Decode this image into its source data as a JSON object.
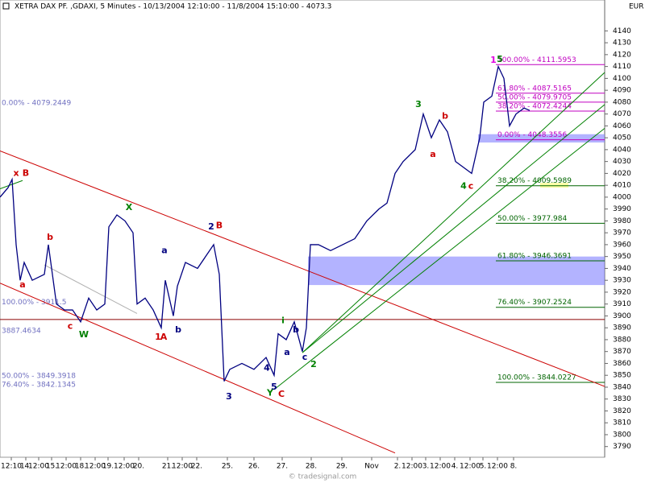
{
  "chart_data": {
    "type": "line",
    "title": "XETRA DAX PF. ,GDAXI, 5 Minutes - 10/13/2004 12:10:00 - 11/8/2004 15:10:00 - 4073.3",
    "currency": "EUR",
    "footer": "© tradesignal.com",
    "color": "#000080",
    "x": [
      0,
      10,
      15,
      20,
      25,
      30,
      40,
      55,
      60,
      70,
      80,
      90,
      100,
      110,
      120,
      130,
      135,
      145,
      155,
      165,
      170,
      180,
      190,
      200,
      205,
      215,
      220,
      230,
      245,
      255,
      265,
      272,
      278,
      285,
      300,
      315,
      330,
      340,
      345,
      355,
      365,
      375,
      380,
      385,
      395,
      410,
      425,
      440,
      455,
      470,
      480,
      490,
      500,
      515,
      525,
      535,
      545,
      555,
      565,
      575,
      585,
      595,
      600,
      610,
      618,
      625,
      632,
      640,
      650,
      657
    ],
    "values": [
      4000,
      4008,
      4015,
      3960,
      3930,
      3945,
      3930,
      3935,
      3960,
      3910,
      3905,
      3905,
      3895,
      3915,
      3905,
      3910,
      3975,
      3985,
      3980,
      3970,
      3910,
      3915,
      3905,
      3890,
      3930,
      3900,
      3925,
      3945,
      3940,
      3950,
      3960,
      3935,
      3845,
      3855,
      3860,
      3855,
      3865,
      3850,
      3885,
      3880,
      3895,
      3870,
      3890,
      3960,
      3960,
      3955,
      3960,
      3965,
      3980,
      3990,
      3995,
      4020,
      4030,
      4040,
      4070,
      4050,
      4065,
      4055,
      4030,
      4025,
      4020,
      4050,
      4080,
      4085,
      4110,
      4100,
      4060,
      4070,
      4075,
      4073
    ],
    "xlim": [
      0,
      750
    ],
    "ylim": [
      3781,
      4166
    ],
    "yticks": [
      3790,
      3800,
      3810,
      3820,
      3830,
      3840,
      3850,
      3860,
      3870,
      3880,
      3890,
      3900,
      3910,
      3920,
      3930,
      3940,
      3950,
      3960,
      3970,
      3980,
      3990,
      4000,
      4010,
      4020,
      4030,
      4040,
      4050,
      4060,
      4070,
      4080,
      4090,
      4100,
      4110,
      4120,
      4130,
      4140
    ],
    "xticks": [
      {
        "value": 14,
        "label": "12:10"
      },
      {
        "value": 32,
        "label": "14."
      },
      {
        "value": 48,
        "label": "12:00"
      },
      {
        "value": 64,
        "label": "15."
      },
      {
        "value": 82,
        "label": "12:00"
      },
      {
        "value": 100,
        "label": "18."
      },
      {
        "value": 118,
        "label": "12:00"
      },
      {
        "value": 134,
        "label": "19."
      },
      {
        "value": 154,
        "label": "12:00"
      },
      {
        "value": 172,
        "label": "20."
      },
      {
        "value": 208,
        "label": "21."
      },
      {
        "value": 226,
        "label": "12:00"
      },
      {
        "value": 244,
        "label": "22."
      },
      {
        "value": 282,
        "label": "25."
      },
      {
        "value": 315,
        "label": "26."
      },
      {
        "value": 350,
        "label": "27."
      },
      {
        "value": 386,
        "label": "28."
      },
      {
        "value": 424,
        "label": "29."
      },
      {
        "value": 461,
        "label": "Nov"
      },
      {
        "value": 493,
        "label": "2."
      },
      {
        "value": 511,
        "label": "12:00"
      },
      {
        "value": 528,
        "label": "3."
      },
      {
        "value": 546,
        "label": "12:00"
      },
      {
        "value": 564,
        "label": "4."
      },
      {
        "value": 583,
        "label": "12:00"
      },
      {
        "value": 599,
        "label": "5."
      },
      {
        "value": 617,
        "label": "12:00"
      },
      {
        "value": 637,
        "label": "8."
      }
    ],
    "hline": {
      "value": 3897,
      "color": "#8b0000"
    },
    "zones": [
      {
        "from": 382,
        "to": 750,
        "low": 3926,
        "high": 3950,
        "color": "#8080ff"
      },
      {
        "from": 593,
        "to": 750,
        "low": 4046,
        "high": 4053,
        "color": "#8080ff"
      },
      {
        "from": 670,
        "to": 705,
        "low": 4008,
        "high": 4012,
        "color": "#ffff66"
      }
    ],
    "trendlines": [
      {
        "x": [
          0,
          750
        ],
        "y": [
          4038.9,
          3840.6
        ],
        "color": "#cc0000"
      },
      {
        "x": [
          0,
          490
        ],
        "y": [
          3927.6,
          3784.6
        ],
        "color": "#cc0000"
      },
      {
        "x": [
          375,
          750
        ],
        "y": [
          3869,
          4105
        ],
        "color": "#008000"
      },
      {
        "x": [
          375,
          750
        ],
        "y": [
          3869,
          4078
        ],
        "color": "#008000"
      },
      {
        "x": [
          340,
          750
        ],
        "y": [
          3838,
          4058
        ],
        "color": "#008000"
      },
      {
        "x": [
          0,
          28
        ],
        "y": [
          4007,
          4014
        ],
        "color": "#008000"
      },
      {
        "x": [
          55,
          170
        ],
        "y": [
          3943,
          3902
        ],
        "color": "#b0b0b0"
      }
    ],
    "levels": [
      {
        "label": "100.00% - 4111.5953",
        "value": 4111.5953,
        "color": "#c000c0"
      },
      {
        "label": "61.80% - 4087.5165",
        "value": 4087.5165,
        "color": "#c000c0"
      },
      {
        "label": "50.00% - 4079.9705",
        "value": 4079.9705,
        "color": "#c000c0"
      },
      {
        "label": "38.20% - 4072.4244",
        "value": 4072.4244,
        "color": "#c000c0"
      },
      {
        "label": "0.00% - 4048.3556",
        "value": 4048.3556,
        "color": "#c000c0"
      },
      {
        "label": "38.20% - 4009.5989",
        "value": 4009.5989,
        "color": "#006400"
      },
      {
        "label": "50.00% - 3977.984",
        "value": 3977.984,
        "color": "#006400"
      },
      {
        "label": "61.80% - 3946.3691",
        "value": 3946.3691,
        "color": "#006400"
      },
      {
        "label": "76.40% - 3907.2524",
        "value": 3907.2524,
        "color": "#006400"
      },
      {
        "label": "100.00% - 3844.0227",
        "value": 3844.0227,
        "color": "#006400"
      }
    ],
    "left_levels": [
      {
        "label": "0.00% - 4079.2449",
        "value": 4079.2449
      },
      {
        "label": "100.00% - 3911.5",
        "value": 3911.5
      },
      {
        "label": "3887.4634",
        "value": 3887.4634
      },
      {
        "label": "50.00% - 3849.3918",
        "value": 3849.3918
      },
      {
        "label": "76.40% - 3842.1345",
        "value": 3842.1345
      }
    ],
    "annotations": [
      {
        "text": "x",
        "color": "#cc0000",
        "x": 20,
        "y": 4020
      },
      {
        "text": "B",
        "color": "#cc0000",
        "x": 32,
        "y": 4020
      },
      {
        "text": "a",
        "color": "#cc0000",
        "x": 28,
        "y": 3926
      },
      {
        "text": "b",
        "color": "#cc0000",
        "x": 62,
        "y": 3966
      },
      {
        "text": "c",
        "color": "#cc0000",
        "x": 87,
        "y": 3891
      },
      {
        "text": "W",
        "color": "#008000",
        "x": 104,
        "y": 3884
      },
      {
        "text": "X",
        "color": "#008000",
        "x": 160,
        "y": 3991
      },
      {
        "text": "1",
        "color": "#cc0000",
        "x": 196,
        "y": 3882
      },
      {
        "text": "A",
        "color": "#cc0000",
        "x": 203,
        "y": 3882
      },
      {
        "text": "a",
        "color": "#000080",
        "x": 204,
        "y": 3955
      },
      {
        "text": "b",
        "color": "#000080",
        "x": 221,
        "y": 3888
      },
      {
        "text": "2",
        "color": "#000080",
        "x": 262,
        "y": 3975
      },
      {
        "text": "B",
        "color": "#cc0000",
        "x": 272,
        "y": 3976
      },
      {
        "text": "3",
        "color": "#000080",
        "x": 284,
        "y": 3832
      },
      {
        "text": "4",
        "color": "#000080",
        "x": 331,
        "y": 3856
      },
      {
        "text": "5",
        "color": "#000080",
        "x": 340,
        "y": 3840
      },
      {
        "text": "Y",
        "color": "#008000",
        "x": 335,
        "y": 3835
      },
      {
        "text": "C",
        "color": "#cc0000",
        "x": 349,
        "y": 3834
      },
      {
        "text": "a",
        "color": "#000080",
        "x": 356,
        "y": 3869
      },
      {
        "text": "b",
        "color": "#000080",
        "x": 367,
        "y": 3888
      },
      {
        "text": "i",
        "color": "#008000",
        "x": 351,
        "y": 3896
      },
      {
        "text": "c",
        "color": "#000080",
        "x": 378,
        "y": 3865
      },
      {
        "text": "2",
        "color": "#008000",
        "x": 389,
        "y": 3859
      },
      {
        "text": "3",
        "color": "#008000",
        "x": 519,
        "y": 4078
      },
      {
        "text": "a",
        "color": "#cc0000",
        "x": 537,
        "y": 4036
      },
      {
        "text": "b",
        "color": "#cc0000",
        "x": 552,
        "y": 4068
      },
      {
        "text": "4",
        "color": "#008000",
        "x": 575,
        "y": 4009
      },
      {
        "text": "c",
        "color": "#cc0000",
        "x": 584,
        "y": 4009
      },
      {
        "text": "5",
        "color": "#008000",
        "x": 620,
        "y": 4116
      },
      {
        "text": "1",
        "color": "#e000e0",
        "x": 612,
        "y": 4115
      }
    ]
  }
}
